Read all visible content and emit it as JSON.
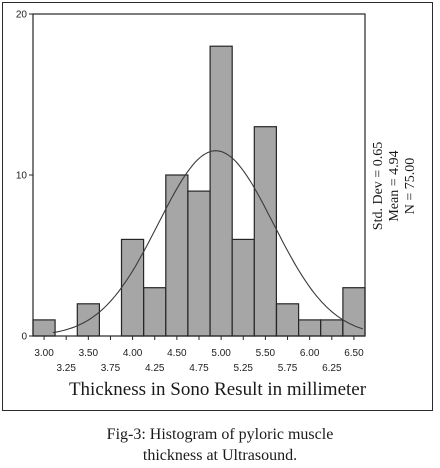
{
  "figure": {
    "caption_line1": "Fig-3: Histogram of pyloric muscle",
    "caption_line2": "thickness at Ultrasound."
  },
  "chart_data": {
    "type": "bar",
    "title": "",
    "xlabel": "Thickness in Sono Result in millimeter",
    "ylabel": "",
    "xlim": [
      2.875,
      6.625
    ],
    "ylim": [
      0,
      20
    ],
    "bin_width": 0.25,
    "bin_centers": [
      3.0,
      3.25,
      3.5,
      3.75,
      4.0,
      4.25,
      4.5,
      4.75,
      5.0,
      5.25,
      5.5,
      5.75,
      6.0,
      6.25,
      6.5
    ],
    "values": [
      1,
      0,
      2,
      0,
      6,
      3,
      10,
      9,
      18,
      6,
      13,
      2,
      1,
      1,
      3
    ],
    "x_tick_labels_row1": [
      "3.00",
      "3.50",
      "4.00",
      "4.50",
      "5.00",
      "5.50",
      "6.00",
      "6.50"
    ],
    "x_tick_labels_row2": [
      "3.25",
      "3.75",
      "4.25",
      "4.75",
      "5.25",
      "5.75",
      "6.25"
    ],
    "y_ticks": [
      0,
      10,
      20
    ],
    "normal_curve": {
      "mean": 4.94,
      "std_dev": 0.65,
      "n": 75
    },
    "stats": [
      "Std. Dev = 0.65",
      "Mean = 4.94",
      "N = 75.00"
    ],
    "grid": false,
    "colors": {
      "bar_fill": "#a6a6a6",
      "bar_stroke": "#262626",
      "curve": "#3a3a3a",
      "axis": "#262626"
    }
  }
}
